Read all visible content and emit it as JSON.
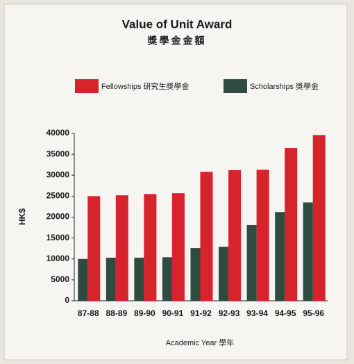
{
  "chart_data": {
    "type": "bar",
    "title": "Value of Unit Award",
    "subtitle": "獎學金金額",
    "xlabel": "Academic Year 學年",
    "ylabel": "HK$",
    "categories": [
      "87-88",
      "88-89",
      "89-90",
      "90-91",
      "91-92",
      "92-93",
      "93-94",
      "94-95",
      "95-96"
    ],
    "series": [
      {
        "name": "Fellowships 研究生獎學金",
        "color": "#d7232b",
        "values": [
          25000,
          25200,
          25500,
          25700,
          30800,
          31200,
          31300,
          36500,
          39600
        ]
      },
      {
        "name": "Scholarships 獎學金",
        "color": "#2e4b40",
        "values": [
          10000,
          10300,
          10300,
          10400,
          12600,
          12900,
          18100,
          21200,
          23500
        ]
      }
    ],
    "ylim": [
      0,
      40000
    ],
    "yticks": [
      0,
      5000,
      10000,
      15000,
      20000,
      25000,
      30000,
      35000,
      40000
    ]
  }
}
